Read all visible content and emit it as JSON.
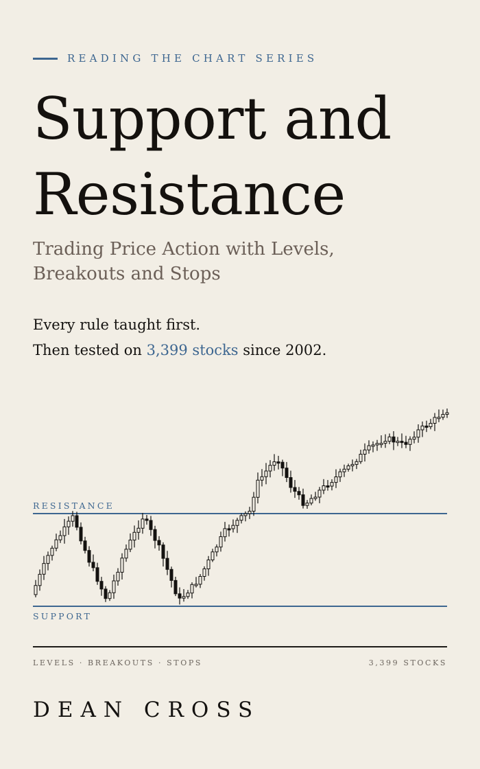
{
  "series": {
    "label": "READING THE CHART SERIES"
  },
  "title": {
    "line1": "Support and",
    "line2": "Resistance"
  },
  "subtitle": {
    "line1": "Trading Price Action with Levels,",
    "line2": "Breakouts and Stops"
  },
  "tagline": {
    "line1": "Every rule taught first.",
    "line2_pre": "Then tested on ",
    "line2_highlight": "3,399 stocks",
    "line2_post": " since 2002."
  },
  "chart": {
    "resistance_label": "RESISTANCE",
    "support_label": "SUPPORT",
    "colors": {
      "level_line": "#3d6690",
      "candle": "#141210",
      "up_fill": "#f2eee5"
    }
  },
  "footer": {
    "left": "LEVELS · BREAKOUTS · STOPS",
    "right": "3,399 STOCKS"
  },
  "author": "DEAN CROSS",
  "colors": {
    "background": "#f2eee5",
    "accent": "#3d6690",
    "text": "#141210",
    "muted": "#6b5f57"
  }
}
